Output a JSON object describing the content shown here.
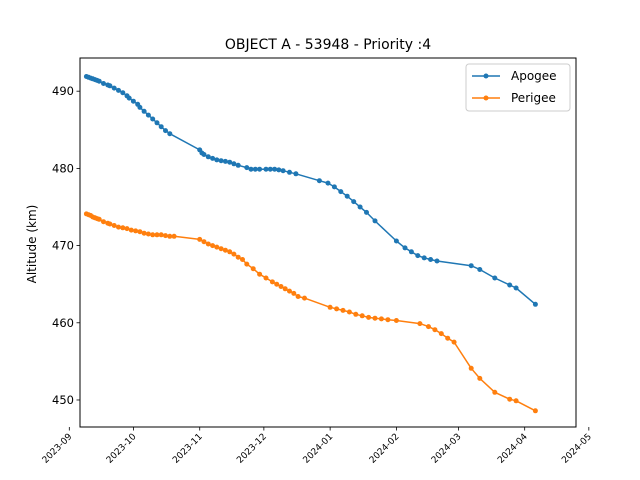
{
  "chart_data": {
    "type": "line",
    "title": "OBJECT A - 53948 - Priority :4",
    "xlabel": "",
    "ylabel": "Altitude (km)",
    "xlim": [
      "2023-09-06",
      "2024-04-25"
    ],
    "ylim": [
      446.5,
      494.3
    ],
    "x_ticks": [
      "2023-09",
      "2023-10",
      "2023-11",
      "2023-12",
      "2024-01",
      "2024-02",
      "2024-03",
      "2024-04",
      "2024-05"
    ],
    "y_ticks": [
      450,
      460,
      470,
      480,
      490
    ],
    "grid": false,
    "legend_position": "top-right",
    "series": [
      {
        "name": "Apogee",
        "color": "#1f77b4",
        "marker": "circle",
        "points": [
          [
            "2023-09-09",
            491.9
          ],
          [
            "2023-09-10",
            491.8
          ],
          [
            "2023-09-11",
            491.7
          ],
          [
            "2023-09-12",
            491.6
          ],
          [
            "2023-09-13",
            491.5
          ],
          [
            "2023-09-14",
            491.4
          ],
          [
            "2023-09-15",
            491.3
          ],
          [
            "2023-09-17",
            491.0
          ],
          [
            "2023-09-19",
            490.8
          ],
          [
            "2023-09-20",
            490.7
          ],
          [
            "2023-09-22",
            490.4
          ],
          [
            "2023-09-24",
            490.1
          ],
          [
            "2023-09-26",
            489.8
          ],
          [
            "2023-09-28",
            489.4
          ],
          [
            "2023-09-29",
            489.1
          ],
          [
            "2023-10-01",
            488.7
          ],
          [
            "2023-10-03",
            488.3
          ],
          [
            "2023-10-04",
            487.9
          ],
          [
            "2023-10-06",
            487.4
          ],
          [
            "2023-10-08",
            486.9
          ],
          [
            "2023-10-10",
            486.4
          ],
          [
            "2023-10-12",
            485.9
          ],
          [
            "2023-10-14",
            485.4
          ],
          [
            "2023-10-16",
            484.9
          ],
          [
            "2023-10-18",
            484.5
          ],
          [
            "2023-11-01",
            482.4
          ],
          [
            "2023-11-02",
            482.0
          ],
          [
            "2023-11-03",
            481.8
          ],
          [
            "2023-11-05",
            481.5
          ],
          [
            "2023-11-07",
            481.3
          ],
          [
            "2023-11-09",
            481.1
          ],
          [
            "2023-11-11",
            481.0
          ],
          [
            "2023-11-13",
            480.9
          ],
          [
            "2023-11-15",
            480.8
          ],
          [
            "2023-11-17",
            480.6
          ],
          [
            "2023-11-19",
            480.4
          ],
          [
            "2023-11-23",
            480.1
          ],
          [
            "2023-11-25",
            479.9
          ],
          [
            "2023-11-27",
            479.9
          ],
          [
            "2023-11-29",
            479.9
          ],
          [
            "2023-12-02",
            479.9
          ],
          [
            "2023-12-04",
            479.9
          ],
          [
            "2023-12-06",
            479.9
          ],
          [
            "2023-12-08",
            479.8
          ],
          [
            "2023-12-10",
            479.7
          ],
          [
            "2023-12-13",
            479.5
          ],
          [
            "2023-12-16",
            479.3
          ],
          [
            "2023-12-27",
            478.4
          ],
          [
            "2023-12-31",
            478.1
          ],
          [
            "2024-01-03",
            477.6
          ],
          [
            "2024-01-06",
            477.0
          ],
          [
            "2024-01-09",
            476.4
          ],
          [
            "2024-01-12",
            475.7
          ],
          [
            "2024-01-15",
            475.0
          ],
          [
            "2024-01-18",
            474.3
          ],
          [
            "2024-01-22",
            473.2
          ],
          [
            "2024-02-01",
            470.6
          ],
          [
            "2024-02-05",
            469.7
          ],
          [
            "2024-02-08",
            469.2
          ],
          [
            "2024-02-11",
            468.7
          ],
          [
            "2024-02-14",
            468.4
          ],
          [
            "2024-02-17",
            468.2
          ],
          [
            "2024-02-20",
            468.0
          ],
          [
            "2024-03-07",
            467.4
          ],
          [
            "2024-03-11",
            466.9
          ],
          [
            "2024-03-18",
            465.8
          ],
          [
            "2024-03-25",
            464.9
          ],
          [
            "2024-03-28",
            464.5
          ],
          [
            "2024-04-06",
            462.4
          ]
        ]
      },
      {
        "name": "Perigee",
        "color": "#ff7f0e",
        "marker": "circle",
        "points": [
          [
            "2023-09-09",
            474.1
          ],
          [
            "2023-09-10",
            474.0
          ],
          [
            "2023-09-11",
            473.9
          ],
          [
            "2023-09-12",
            473.7
          ],
          [
            "2023-09-13",
            473.6
          ],
          [
            "2023-09-14",
            473.5
          ],
          [
            "2023-09-15",
            473.4
          ],
          [
            "2023-09-17",
            473.1
          ],
          [
            "2023-09-19",
            472.9
          ],
          [
            "2023-09-20",
            472.8
          ],
          [
            "2023-09-22",
            472.6
          ],
          [
            "2023-09-24",
            472.4
          ],
          [
            "2023-09-26",
            472.3
          ],
          [
            "2023-09-28",
            472.2
          ],
          [
            "2023-09-30",
            472.0
          ],
          [
            "2023-10-02",
            471.9
          ],
          [
            "2023-10-04",
            471.8
          ],
          [
            "2023-10-06",
            471.6
          ],
          [
            "2023-10-08",
            471.5
          ],
          [
            "2023-10-10",
            471.4
          ],
          [
            "2023-10-12",
            471.4
          ],
          [
            "2023-10-14",
            471.4
          ],
          [
            "2023-10-16",
            471.3
          ],
          [
            "2023-10-18",
            471.2
          ],
          [
            "2023-10-20",
            471.2
          ],
          [
            "2023-11-01",
            470.8
          ],
          [
            "2023-11-03",
            470.5
          ],
          [
            "2023-11-05",
            470.2
          ],
          [
            "2023-11-07",
            470.0
          ],
          [
            "2023-11-09",
            469.8
          ],
          [
            "2023-11-11",
            469.6
          ],
          [
            "2023-11-13",
            469.4
          ],
          [
            "2023-11-15",
            469.2
          ],
          [
            "2023-11-17",
            468.9
          ],
          [
            "2023-11-19",
            468.5
          ],
          [
            "2023-11-21",
            468.2
          ],
          [
            "2023-11-23",
            467.6
          ],
          [
            "2023-11-26",
            467.0
          ],
          [
            "2023-11-29",
            466.3
          ],
          [
            "2023-12-02",
            465.8
          ],
          [
            "2023-12-05",
            465.3
          ],
          [
            "2023-12-07",
            465.0
          ],
          [
            "2023-12-09",
            464.7
          ],
          [
            "2023-12-11",
            464.4
          ],
          [
            "2023-12-13",
            464.1
          ],
          [
            "2023-12-15",
            463.8
          ],
          [
            "2023-12-17",
            463.4
          ],
          [
            "2023-12-20",
            463.2
          ],
          [
            "2024-01-01",
            462.0
          ],
          [
            "2024-01-04",
            461.8
          ],
          [
            "2024-01-07",
            461.6
          ],
          [
            "2024-01-10",
            461.4
          ],
          [
            "2024-01-13",
            461.1
          ],
          [
            "2024-01-16",
            460.9
          ],
          [
            "2024-01-19",
            460.7
          ],
          [
            "2024-01-22",
            460.6
          ],
          [
            "2024-01-25",
            460.5
          ],
          [
            "2024-01-28",
            460.4
          ],
          [
            "2024-02-01",
            460.3
          ],
          [
            "2024-02-12",
            459.9
          ],
          [
            "2024-02-16",
            459.5
          ],
          [
            "2024-02-19",
            459.1
          ],
          [
            "2024-02-22",
            458.6
          ],
          [
            "2024-02-25",
            458.0
          ],
          [
            "2024-02-28",
            457.5
          ],
          [
            "2024-03-07",
            454.1
          ],
          [
            "2024-03-11",
            452.8
          ],
          [
            "2024-03-18",
            451.0
          ],
          [
            "2024-03-25",
            450.1
          ],
          [
            "2024-03-28",
            449.9
          ],
          [
            "2024-04-06",
            448.6
          ]
        ]
      }
    ]
  }
}
